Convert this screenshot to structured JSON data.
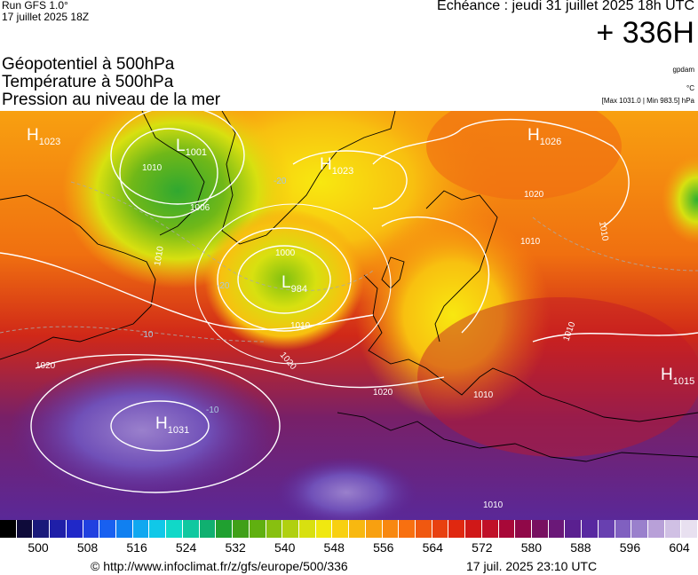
{
  "header": {
    "run": "Run GFS 1.0°",
    "run_date": "17 juillet 2025 18Z",
    "valid": "Echéance : jeudi 31 juillet 2025 18h UTC",
    "offset": "+ 336H"
  },
  "params": [
    "Géopotentiel à 500hPa",
    "Température à 500hPa",
    "Pression au niveau de la mer"
  ],
  "units": {
    "geopotential": "gpdam",
    "temperature": "°C",
    "pressure": "[Max 1031.0 | Min 983.5] hPa"
  },
  "pressure_centers": [
    {
      "type": "H",
      "value": "1023",
      "name": "high-1023-west"
    },
    {
      "type": "L",
      "value": "1001",
      "name": "low-1001-labrador"
    },
    {
      "type": "H",
      "value": "1023",
      "name": "high-1023-greenland"
    },
    {
      "type": "H",
      "value": "1026",
      "name": "high-1026-arctic"
    },
    {
      "type": "L",
      "value": "984",
      "name": "low-984-atlantic"
    },
    {
      "type": "H",
      "value": "1031",
      "name": "high-1031-azores"
    },
    {
      "type": "H",
      "value": "1015",
      "name": "high-1015-east"
    }
  ],
  "isobar_labels": [
    "1010",
    "1006",
    "1010",
    "1000",
    "1010",
    "1020",
    "1020",
    "1010",
    "1020",
    "1010",
    "1010",
    "1020",
    "1010",
    "1010"
  ],
  "temperature_labels": [
    "-20",
    "-20",
    "-10",
    "-10"
  ],
  "scale": {
    "ticks": [
      "500",
      "508",
      "516",
      "524",
      "532",
      "540",
      "548",
      "556",
      "564",
      "572",
      "580",
      "588",
      "596",
      "604"
    ],
    "colors": [
      "#000000",
      "#0f0b3a",
      "#1a1a7a",
      "#1f1fa8",
      "#2028c8",
      "#2040e0",
      "#1860f0",
      "#1080f0",
      "#10a8f0",
      "#10c8e8",
      "#10d8c8",
      "#10c8a0",
      "#10b070",
      "#20a030",
      "#40a018",
      "#60b010",
      "#88c010",
      "#b0d010",
      "#d8e010",
      "#f0e810",
      "#f8d010",
      "#f8b810",
      "#f8a010",
      "#f88810",
      "#f87010",
      "#f05810",
      "#e84010",
      "#e02810",
      "#d01818",
      "#c01028",
      "#a80838",
      "#900848",
      "#781060",
      "#6a1878",
      "#5a2090",
      "#5828a0",
      "#6840b0",
      "#8060c0",
      "#9a80cc",
      "#b8a0d8",
      "#d0c0e4",
      "#e8e0f0"
    ]
  },
  "footer": {
    "url": "© http://www.infoclimat.fr/z/gfs/europe/500/336",
    "generated": "17 juil. 2025 23:10 UTC"
  }
}
